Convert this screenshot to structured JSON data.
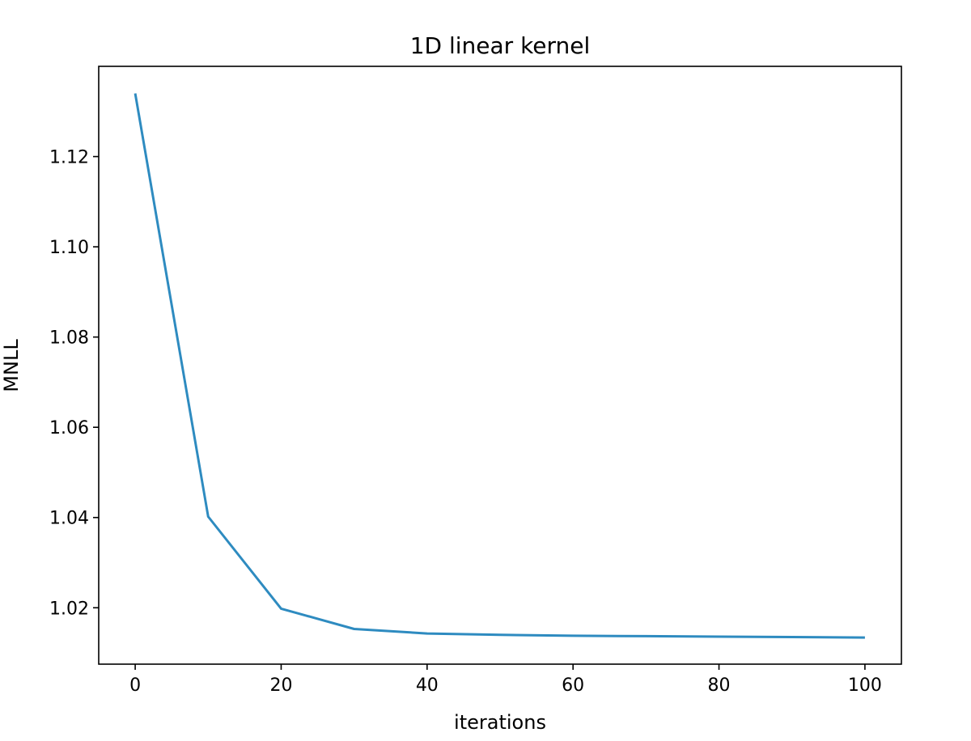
{
  "chart_data": {
    "type": "line",
    "title": "1D linear kernel",
    "xlabel": "iterations",
    "ylabel": "MNLL",
    "xlim": [
      -5,
      105
    ],
    "ylim": [
      1.0075,
      1.14
    ],
    "xticks": [
      0,
      20,
      40,
      60,
      80,
      100
    ],
    "yticks": [
      1.02,
      1.04,
      1.06,
      1.08,
      1.1,
      1.12
    ],
    "grid": false,
    "series": [
      {
        "color": "#2e8bc0",
        "x": [
          0,
          10,
          20,
          30,
          40,
          50,
          60,
          70,
          80,
          90,
          100
        ],
        "y": [
          1.134,
          1.0402,
          1.0198,
          1.0153,
          1.0143,
          1.014,
          1.0138,
          1.0137,
          1.0136,
          1.0135,
          1.0134
        ]
      }
    ]
  }
}
